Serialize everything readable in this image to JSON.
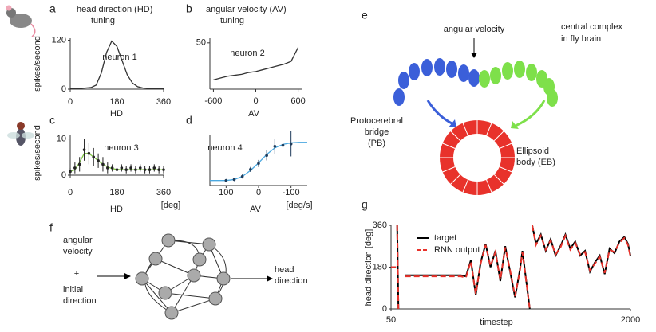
{
  "chart_data": [
    {
      "type": "line",
      "label": "a",
      "title": [
        "head direction (HD)",
        "tuning"
      ],
      "annotation": "neuron 1",
      "ylabel": "spikes/second",
      "xlabel": "HD",
      "x": [
        0,
        20,
        40,
        60,
        80,
        100,
        120,
        140,
        160,
        180,
        200,
        220,
        240,
        260,
        280,
        300,
        320,
        340,
        360
      ],
      "series": [
        {
          "color": "#333333",
          "style": "line",
          "values": [
            2,
            2,
            2,
            3,
            4,
            10,
            40,
            90,
            118,
            105,
            70,
            35,
            15,
            6,
            3,
            2,
            2,
            2,
            2
          ]
        }
      ],
      "xlim": [
        0,
        360
      ],
      "ylim": [
        0,
        125
      ],
      "xticks": [
        0,
        180,
        360
      ],
      "yticks": [
        0,
        120
      ]
    },
    {
      "type": "line",
      "label": "b",
      "title": [
        "angular velocity (AV)",
        "tuning"
      ],
      "annotation": "neuron 2",
      "xlabel": "AV",
      "x": [
        -600,
        -500,
        -400,
        -300,
        -200,
        -100,
        0,
        100,
        200,
        300,
        400,
        500,
        600
      ],
      "series": [
        {
          "color": "#333333",
          "style": "line",
          "values": [
            10,
            12,
            14,
            15,
            16,
            18,
            19,
            21,
            23,
            25,
            27,
            30,
            45
          ]
        }
      ],
      "xlim": [
        -650,
        650
      ],
      "ylim": [
        0,
        55
      ],
      "xticks": [
        -600,
        0,
        600
      ],
      "yticks": [
        50
      ]
    },
    {
      "type": "line",
      "label": "c",
      "annotation": "neuron 3",
      "ylabel": "spikes/second",
      "xlabel": "HD",
      "xunit": "[deg]",
      "x": [
        0,
        18,
        36,
        54,
        72,
        90,
        108,
        126,
        144,
        162,
        180,
        198,
        216,
        234,
        252,
        270,
        288,
        306,
        324,
        342,
        360
      ],
      "series": [
        {
          "color": "#7dc242",
          "style": "line",
          "values": [
            1,
            1.5,
            3.5,
            6,
            6,
            5,
            4,
            3,
            2.3,
            1.8,
            1.6,
            1.5,
            1.5,
            1.5,
            1.5,
            1.5,
            1.5,
            1.5,
            1.5,
            1.5,
            1.5
          ]
        },
        {
          "color": "#222222",
          "style": "points",
          "values": [
            1,
            2,
            3,
            7,
            6,
            5,
            4,
            3,
            2,
            2,
            1.5,
            2,
            1.5,
            2,
            1.5,
            2,
            1.5,
            1.5,
            2,
            1.5,
            1.5
          ],
          "errors": [
            1,
            1.5,
            2,
            3,
            3,
            2.5,
            2,
            2,
            1.5,
            1,
            1,
            1,
            1,
            1,
            1,
            1,
            1,
            1,
            1,
            1,
            1
          ]
        }
      ],
      "xlim": [
        0,
        360
      ],
      "ylim": [
        0,
        11
      ],
      "xticks": [
        0,
        180,
        360
      ],
      "yticks": [
        0,
        10
      ]
    },
    {
      "type": "line",
      "label": "d",
      "annotation": "neuron 4",
      "xlabel": "AV",
      "xunit": "[deg/s]",
      "x": [
        150,
        125,
        100,
        75,
        50,
        25,
        0,
        -25,
        -50,
        -75,
        -100,
        -125,
        -150
      ],
      "series": [
        {
          "color": "#4aa8e0",
          "style": "line",
          "values": [
            1,
            1,
            1,
            1.2,
            1.8,
            3,
            4.5,
            6.2,
            7.5,
            8.2,
            8.5,
            8.6,
            8.6
          ]
        },
        {
          "color": "#1f3b5a",
          "style": "points",
          "values": [
            null,
            null,
            1,
            1.2,
            1.8,
            3.2,
            4.4,
            6,
            7.8,
            8,
            8.3,
            null,
            null
          ],
          "errors": [
            null,
            null,
            0.3,
            0.3,
            0.4,
            0.5,
            0.7,
            1,
            1.5,
            2,
            2.5,
            null,
            null
          ]
        }
      ],
      "xlim": [
        150,
        -150
      ],
      "ylim": [
        0,
        10
      ],
      "xticks": [
        100,
        0,
        -100
      ],
      "yticks": []
    },
    {
      "type": "line",
      "label": "g",
      "ylabel": "head direction [deg]",
      "xlabel": "timestep",
      "x": [
        50,
        90,
        95,
        100,
        110,
        120,
        165,
        300,
        450,
        620,
        660,
        700,
        740,
        780,
        820,
        860,
        900,
        940,
        980,
        1020,
        1060,
        1100,
        1120,
        1180,
        1190,
        1200,
        1230,
        1270,
        1310,
        1350,
        1390,
        1430,
        1470,
        1510,
        1550,
        1590,
        1630,
        1670,
        1710,
        1750,
        1790,
        1830,
        1870,
        1910,
        1950,
        1980,
        2000
      ],
      "series": [
        {
          "name": "target",
          "color": "#000000",
          "style": "line",
          "values": [
            180,
            180,
            null,
            360,
            0,
            null,
            145,
            145,
            145,
            145,
            140,
            210,
            60,
            200,
            280,
            180,
            250,
            120,
            270,
            160,
            50,
            170,
            250,
            0,
            null,
            360,
            280,
            320,
            250,
            300,
            230,
            270,
            320,
            260,
            290,
            230,
            250,
            160,
            200,
            230,
            150,
            260,
            240,
            290,
            310,
            280,
            230
          ]
        },
        {
          "name": "RNN output",
          "color": "#e8322b",
          "style": "line",
          "dashed": true,
          "values": [
            180,
            180,
            null,
            360,
            0,
            null,
            140,
            140,
            140,
            140,
            135,
            205,
            65,
            195,
            275,
            185,
            245,
            125,
            265,
            165,
            55,
            165,
            245,
            0,
            null,
            360,
            275,
            315,
            255,
            295,
            235,
            265,
            315,
            255,
            285,
            235,
            245,
            165,
            195,
            225,
            155,
            255,
            245,
            285,
            305,
            275,
            225
          ]
        }
      ],
      "xlim": [
        50,
        2000
      ],
      "ylim": [
        0,
        360
      ],
      "xticks": [
        50,
        2000
      ],
      "yticks": [
        0,
        180,
        360
      ]
    }
  ],
  "diagram_e": {
    "label": "e",
    "input": "angular velocity",
    "caption": [
      "central complex",
      "in fly brain"
    ],
    "pb_label": [
      "Protocerebral",
      "bridge",
      "(PB)"
    ],
    "eb_label": [
      "Ellipsoid",
      "body (EB)"
    ]
  },
  "diagram_f": {
    "label": "f",
    "input1": [
      "angular",
      "velocity"
    ],
    "plus": "+",
    "input2": [
      "initial",
      "direction"
    ],
    "output": [
      "head",
      "direction"
    ]
  }
}
